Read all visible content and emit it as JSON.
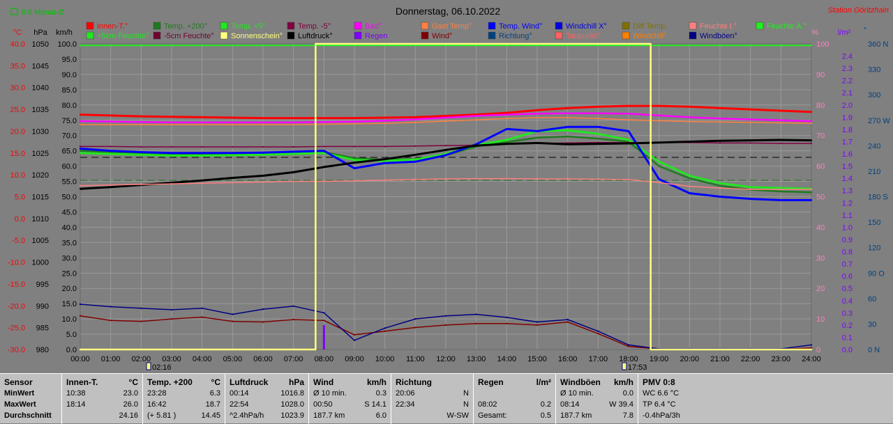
{
  "title": "Donnerstag, 06.10.2022",
  "station": "Station Göritzhain",
  "monat_toggle": "8.6 Monat-Ø",
  "colors": {
    "red": "#ff0000",
    "darkgreen": "#1f7a1f",
    "lightgreen": "#22e622",
    "maroon": "#800040",
    "magenta": "#ff00ff",
    "gast": "#ff8040",
    "blue": "#0000ff",
    "winddir": "#204080",
    "windchillx": "#0000e0",
    "diff": "#807000",
    "pinkf": "#ff8080",
    "feuchteA": "#20f020",
    "darkmaroon": "#700030",
    "sun": "#ffff80",
    "black": "#000000",
    "regen": "#8000ff",
    "wind": "#800000",
    "richtung": "#004080",
    "taupunkt": "#ff6060",
    "windchill": "#ff8000",
    "windbo": "#000080",
    "hum": "#ff80c0",
    "baro": "#ffffff",
    "rainaxis": "#8000ff",
    "diraxis": "#004080"
  },
  "legend_row1": [
    {
      "label": "Innen-T.°",
      "color": "#ff0000"
    },
    {
      "label": "Temp. +200°",
      "color": "#1f7a1f"
    },
    {
      "label": "Temp. +5°",
      "color": "#22e622"
    },
    {
      "label": "Temp. -5°",
      "color": "#800040"
    },
    {
      "label": "Bad°",
      "color": "#ff00ff"
    },
    {
      "label": "Gast Temp°",
      "color": "#ff8040"
    },
    {
      "label": "Temp. Wind°",
      "color": "#0000ff"
    },
    {
      "label": "Windchill X°",
      "color": "#0000e0"
    },
    {
      "label": "Diff Temp.",
      "color": "#807000"
    },
    {
      "label": "Feuchte I.°",
      "color": "#ff8080"
    },
    {
      "label": "Feuchte A.°",
      "color": "#20f020"
    }
  ],
  "legend_row2": [
    {
      "label": "+5cm Feuchte°",
      "color": "#22e622"
    },
    {
      "label": "-5cm Feuchte°",
      "color": "#700030"
    },
    {
      "label": "Sonnenschein°",
      "color": "#ffff80"
    },
    {
      "label": "Luftdruck°",
      "color": "#000000"
    },
    {
      "label": "Regen",
      "color": "#8000ff"
    },
    {
      "label": "Wind°",
      "color": "#800000"
    },
    {
      "label": "Richtung°",
      "color": "#004080"
    },
    {
      "label": "Taupunkt°",
      "color": "#ff6060"
    },
    {
      "label": "Windchill°",
      "color": "#ff8000"
    },
    {
      "label": "Windböen°",
      "color": "#000080"
    }
  ],
  "axes": {
    "temp": {
      "unit": "°C",
      "ticks": [
        "40.0",
        "35.0",
        "30.0",
        "25.0",
        "20.0",
        "15.0",
        "10.0",
        "5.0",
        "0.0",
        "-5.0",
        "-10.0",
        "-15.0",
        "-20.0",
        "-25.0",
        "-30.0"
      ]
    },
    "pressure": {
      "unit": "hPa",
      "ticks": [
        "1050",
        "1045",
        "1040",
        "1035",
        "1030",
        "1025",
        "1020",
        "1015",
        "1010",
        "1005",
        "1000",
        "995",
        "990",
        "985",
        "980"
      ]
    },
    "speed": {
      "unit": "km/h",
      "ticks": [
        "100.0",
        "95.0",
        "90.0",
        "85.0",
        "80.0",
        "75.0",
        "70.0",
        "65.0",
        "60.0",
        "55.0",
        "50.0",
        "45.0",
        "40.0",
        "35.0",
        "30.0",
        "25.0",
        "20.0",
        "15.0",
        "10.0",
        "5.0",
        "0.0"
      ]
    },
    "humidity": {
      "unit": "%",
      "ticks": [
        "100",
        "90",
        "80",
        "70",
        "60",
        "50",
        "40",
        "30",
        "20",
        "10",
        "0"
      ]
    },
    "rain": {
      "unit": "l/m²",
      "ticks": [
        "2.4",
        "2.3",
        "2.2",
        "2.1",
        "2.0",
        "1.9",
        "1.8",
        "1.7",
        "1.6",
        "1.5",
        "1.4",
        "1.3",
        "1.2",
        "1.1",
        "1.0",
        "0.9",
        "0.8",
        "0.7",
        "0.6",
        "0.5",
        "0.4",
        "0.3",
        "0.2",
        "0.1",
        "0.0"
      ]
    },
    "direction": {
      "unit": "°",
      "ticks": [
        "360 N",
        "330",
        "300",
        "270 W",
        "240",
        "210",
        "180 S",
        "150",
        "120",
        "90 O",
        "60",
        "30",
        "0 N"
      ]
    },
    "time": {
      "ticks": [
        "00:00",
        "01:00",
        "02:00",
        "03:00",
        "04:00",
        "05:00",
        "06:00",
        "07:00",
        "08:00",
        "09:00",
        "10:00",
        "11:00",
        "12:00",
        "13:00",
        "14:00",
        "15:00",
        "16:00",
        "17:00",
        "18:00",
        "19:00",
        "20:00",
        "21:00",
        "22:00",
        "23:00",
        "24:00"
      ]
    },
    "sunrise": "02:16",
    "sunset": "17:53"
  },
  "chart_data": {
    "type": "line",
    "title": "Donnerstag, 06.10.2022",
    "x": [
      0,
      1,
      2,
      3,
      4,
      5,
      6,
      7,
      8,
      9,
      10,
      11,
      12,
      13,
      14,
      15,
      16,
      17,
      18,
      19,
      20,
      21,
      22,
      23,
      24
    ],
    "series": [
      {
        "name": "Innen-T.°",
        "axis": "temp",
        "color": "#ff0000",
        "values": [
          23.8,
          23.6,
          23.4,
          23.3,
          23.2,
          23.1,
          23.0,
          23.0,
          23.0,
          23.0,
          23.1,
          23.2,
          23.5,
          23.8,
          24.2,
          24.8,
          25.3,
          25.6,
          25.8,
          25.8,
          25.6,
          25.3,
          25.0,
          24.7,
          24.4
        ]
      },
      {
        "name": "Bad°",
        "axis": "temp",
        "color": "#ff00ff",
        "values": [
          22.3,
          22.2,
          22.1,
          22.0,
          22.0,
          22.0,
          22.0,
          22.0,
          22.1,
          22.2,
          22.4,
          22.7,
          23.1,
          23.5,
          23.8,
          24.0,
          24.1,
          24.1,
          24.0,
          23.6,
          23.2,
          22.9,
          22.7,
          22.5,
          22.3
        ]
      },
      {
        "name": "Gast Temp°",
        "axis": "temp",
        "color": "#ff8040",
        "values": [
          21.5,
          21.5,
          21.5,
          21.5,
          21.5,
          21.5,
          21.5,
          21.5,
          21.6,
          21.7,
          21.8,
          22.0,
          22.3,
          22.6,
          22.9,
          23.1,
          23.1,
          22.9,
          22.6,
          22.4,
          22.2,
          22.1,
          22.0,
          21.9,
          21.8
        ]
      },
      {
        "name": "Temp. +200°",
        "axis": "temp",
        "color": "#1f7a1f",
        "values": [
          15.5,
          15.2,
          15.0,
          14.8,
          14.7,
          14.7,
          14.8,
          15.0,
          15.2,
          13.8,
          13.5,
          13.6,
          14.5,
          16.5,
          17.5,
          18.5,
          18.8,
          18.3,
          17.6,
          12.0,
          9.2,
          7.5,
          6.6,
          6.2,
          6.0
        ]
      },
      {
        "name": "Temp. +5°",
        "axis": "temp",
        "color": "#22e622",
        "values": [
          15.0,
          14.8,
          14.6,
          14.4,
          14.4,
          14.5,
          14.6,
          14.8,
          15.0,
          13.4,
          13.2,
          13.5,
          14.8,
          16.8,
          18.0,
          20.0,
          20.2,
          19.4,
          18.0,
          13.0,
          9.8,
          8.1,
          7.2,
          7.0,
          6.8
        ]
      },
      {
        "name": "Temp. Wind°",
        "axis": "temp",
        "color": "#0000ff",
        "values": [
          16.0,
          15.5,
          15.2,
          15.0,
          15.0,
          15.0,
          15.1,
          15.3,
          15.5,
          11.5,
          12.7,
          13.0,
          14.5,
          17.0,
          20.5,
          20.0,
          21.0,
          21.0,
          20.0,
          9.0,
          5.8,
          5.0,
          4.5,
          4.2,
          4.2
        ]
      },
      {
        "name": "Temp. -5°",
        "axis": "temp",
        "color": "#800040",
        "values": [
          16.5,
          16.5,
          16.4,
          16.4,
          16.4,
          16.4,
          16.4,
          16.4,
          16.5,
          16.5,
          16.5,
          16.6,
          16.7,
          16.8,
          17.0,
          17.2,
          17.3,
          17.4,
          17.4,
          17.4,
          17.4,
          17.3,
          17.3,
          17.2,
          17.2
        ]
      },
      {
        "name": "Luftdruck°",
        "axis": "pressure",
        "color": "#000000",
        "values": [
          1016.8,
          1017.2,
          1017.7,
          1018.2,
          1018.7,
          1019.3,
          1019.8,
          1020.6,
          1021.8,
          1022.8,
          1023.6,
          1024.6,
          1025.7,
          1026.7,
          1027.1,
          1027.3,
          1027.0,
          1027.1,
          1027.2,
          1027.4,
          1027.6,
          1027.8,
          1027.9,
          1028.0,
          1027.9
        ]
      },
      {
        "name": "Feuchte I.°",
        "axis": "humidity",
        "color": "#ff8080",
        "values": [
          53.6,
          53.8,
          54.0,
          54.2,
          54.4,
          54.6,
          54.8,
          55.0,
          55.0,
          55.2,
          55.4,
          55.6,
          55.8,
          55.9,
          55.9,
          55.8,
          55.8,
          55.7,
          55.6,
          54.6,
          53.4,
          52.8,
          52.4,
          52.4,
          52.4
        ]
      },
      {
        "name": "Feuchte A.°",
        "axis": "humidity",
        "color": "#20f020",
        "values": [
          99.5,
          99.5,
          99.5,
          99.5,
          99.5,
          99.5,
          99.5,
          99.5,
          99.5,
          99.5,
          99.5,
          99.5,
          99.5,
          99.5,
          99.5,
          99.5,
          99.5,
          99.5,
          99.5,
          99.5,
          99.5,
          99.5,
          99.5,
          99.5,
          99.5
        ]
      },
      {
        "name": "Wind°",
        "axis": "speed",
        "color": "#800000",
        "values": [
          11.0,
          9.5,
          9.2,
          10.0,
          10.6,
          9.2,
          9.0,
          9.8,
          9.5,
          4.8,
          6.0,
          7.2,
          8.0,
          8.5,
          8.5,
          8.0,
          9.0,
          5.2,
          1.0,
          0.2,
          0.1,
          0.1,
          0.1,
          0.1,
          0.5
        ]
      },
      {
        "name": "Windböen°",
        "axis": "speed",
        "color": "#000080",
        "values": [
          14.8,
          14.0,
          13.5,
          13.0,
          13.5,
          11.5,
          13.2,
          14.2,
          12.0,
          3.0,
          7.0,
          10.0,
          11.0,
          11.5,
          10.5,
          9.0,
          9.8,
          6.0,
          1.5,
          0.2,
          0.2,
          0.2,
          0.2,
          0.2,
          1.5
        ]
      },
      {
        "name": "Sonnenschein°",
        "axis": "humidity",
        "color": "#ffff80",
        "values": [
          0,
          0,
          0,
          0,
          0,
          0,
          0,
          0,
          100,
          100,
          100,
          100,
          100,
          100,
          100,
          100,
          100,
          100,
          100,
          0,
          0,
          0,
          0,
          0,
          0
        ]
      },
      {
        "name": "Regen",
        "axis": "rain",
        "color": "#8000ff",
        "values": [
          0,
          0,
          0,
          0,
          0,
          0,
          0,
          0,
          0.2,
          0,
          0,
          0,
          0,
          0,
          0,
          0,
          0,
          0,
          0,
          0,
          0,
          0,
          0,
          0,
          0
        ]
      }
    ],
    "ylim_temp": [
      -30,
      40
    ],
    "ylim_pressure": [
      980,
      1050
    ],
    "ylim_speed": [
      0,
      100
    ],
    "ylim_humidity": [
      0,
      100
    ],
    "grid": true
  },
  "table": [
    {
      "header": [
        "Sensor",
        ""
      ],
      "rows": [
        [
          "MinWert",
          ""
        ],
        [
          "MaxWert",
          ""
        ],
        [
          "Durchschnitt",
          ""
        ]
      ]
    },
    {
      "header": [
        "Innen-T.",
        "°C"
      ],
      "rows": [
        [
          "10:38",
          "23.0"
        ],
        [
          "18:14",
          "26.0"
        ],
        [
          "",
          "24.16"
        ]
      ]
    },
    {
      "header": [
        "Temp. +200",
        "°C"
      ],
      "rows": [
        [
          "23:28",
          "6.3"
        ],
        [
          "16:42",
          "18.7"
        ],
        [
          "(+ 5.81 )",
          "14.45"
        ]
      ]
    },
    {
      "header": [
        "Luftdruck",
        "hPa"
      ],
      "rows": [
        [
          "00:14",
          "1016.8"
        ],
        [
          "22:54",
          "1028.0"
        ],
        [
          "^2.4hPa/h",
          "1023.9"
        ]
      ]
    },
    {
      "header": [
        "Wind",
        "km/h"
      ],
      "rows": [
        [
          "Ø 10 min.",
          "0.3"
        ],
        [
          "00:50",
          "S 14.1"
        ],
        [
          "187.7 km",
          "6.0"
        ]
      ]
    },
    {
      "header": [
        "Richtung",
        ""
      ],
      "rows": [
        [
          "20:06",
          "N"
        ],
        [
          "22:34",
          "N"
        ],
        [
          "",
          "W-SW"
        ]
      ]
    },
    {
      "header": [
        "Regen",
        "l/m²"
      ],
      "rows": [
        [
          "",
          ""
        ],
        [
          "08:02",
          "0.2"
        ],
        [
          "Gesamt:",
          "0.5"
        ]
      ]
    },
    {
      "header": [
        "Windböen",
        "km/h"
      ],
      "rows": [
        [
          "Ø 10 min.",
          "0.0"
        ],
        [
          "08:14",
          "W 39.4"
        ],
        [
          "187.7 km",
          "7.8"
        ]
      ]
    },
    {
      "header": [
        "PMV 0:8",
        ""
      ],
      "rows": [
        [
          "WC 6.6 °C",
          ""
        ],
        [
          "TP 6.4 °C",
          ""
        ],
        [
          "-0.4hPa/3h",
          ""
        ]
      ]
    }
  ]
}
